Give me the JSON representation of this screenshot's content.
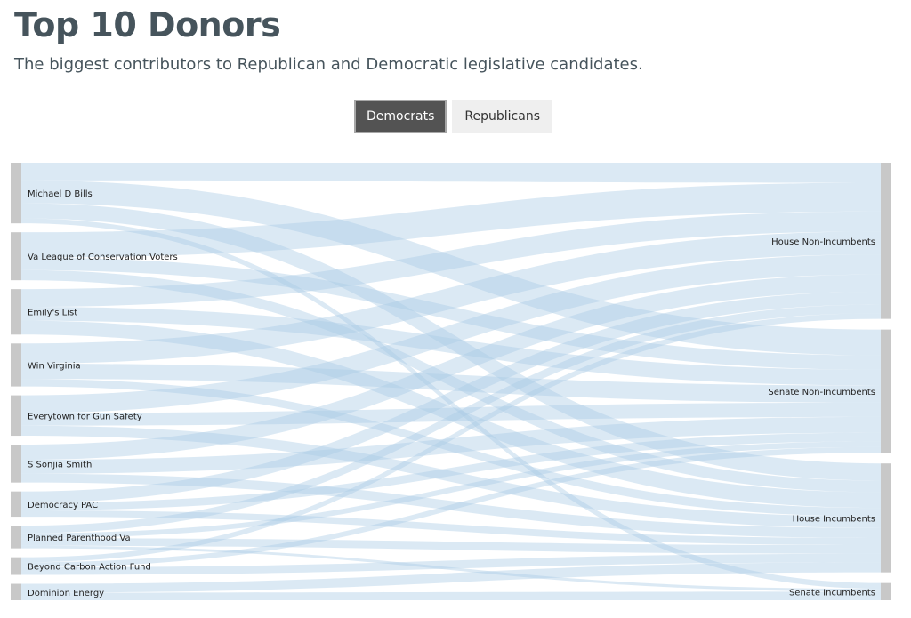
{
  "title": "Top 10 Donors",
  "subtitle": "The biggest contributors to Republican and Democratic legislative candidates.",
  "toggle": {
    "options": [
      "Democrats",
      "Republicans"
    ],
    "selected": "Democrats"
  },
  "colors": {
    "link": "#a9cbe5",
    "node": "#c8c8c8",
    "active_button": "#535353",
    "inactive_button": "#efefef",
    "title": "#46545c"
  },
  "chart_data": {
    "type": "sankey",
    "sources": [
      "Michael D Bills",
      "Va League of Conservation Voters",
      "Emily's List",
      "Win Virginia",
      "Everytown for Gun Safety",
      "S Sonjia Smith",
      "Democracy PAC",
      "Planned Parenthood Va",
      "Beyond Carbon Action Fund",
      "Dominion Energy"
    ],
    "targets": [
      "House Non-Incumbents",
      "Senate Non-Incumbents",
      "House Incumbents",
      "Senate Incumbents"
    ],
    "links": [
      {
        "source": "Michael D Bills",
        "target": "House Non-Incumbents",
        "value": 14
      },
      {
        "source": "Michael D Bills",
        "target": "Senate Non-Incumbents",
        "value": 18
      },
      {
        "source": "Michael D Bills",
        "target": "House Incumbents",
        "value": 12
      },
      {
        "source": "Michael D Bills",
        "target": "Senate Incumbents",
        "value": 4
      },
      {
        "source": "Va League of Conservation Voters",
        "target": "House Non-Incumbents",
        "value": 20
      },
      {
        "source": "Va League of Conservation Voters",
        "target": "Senate Non-Incumbents",
        "value": 10
      },
      {
        "source": "Va League of Conservation Voters",
        "target": "House Incumbents",
        "value": 8
      },
      {
        "source": "Emily's List",
        "target": "House Non-Incumbents",
        "value": 14
      },
      {
        "source": "Emily's List",
        "target": "Senate Non-Incumbents",
        "value": 11
      },
      {
        "source": "Emily's List",
        "target": "House Incumbents",
        "value": 11
      },
      {
        "source": "Win Virginia",
        "target": "House Non-Incumbents",
        "value": 16
      },
      {
        "source": "Win Virginia",
        "target": "Senate Non-Incumbents",
        "value": 12
      },
      {
        "source": "Win Virginia",
        "target": "House Incumbents",
        "value": 6
      },
      {
        "source": "Everytown for Gun Safety",
        "target": "House Non-Incumbents",
        "value": 14
      },
      {
        "source": "Everytown for Gun Safety",
        "target": "Senate Non-Incumbents",
        "value": 10
      },
      {
        "source": "Everytown for Gun Safety",
        "target": "House Incumbents",
        "value": 8
      },
      {
        "source": "S Sonjia Smith",
        "target": "House Non-Incumbents",
        "value": 12
      },
      {
        "source": "S Sonjia Smith",
        "target": "Senate Non-Incumbents",
        "value": 11
      },
      {
        "source": "S Sonjia Smith",
        "target": "House Incumbents",
        "value": 7
      },
      {
        "source": "Democracy PAC",
        "target": "House Non-Incumbents",
        "value": 9
      },
      {
        "source": "Democracy PAC",
        "target": "Senate Non-Incumbents",
        "value": 6
      },
      {
        "source": "Democracy PAC",
        "target": "House Incumbents",
        "value": 5
      },
      {
        "source": "Planned Parenthood Va",
        "target": "House Non-Incumbents",
        "value": 6
      },
      {
        "source": "Planned Parenthood Va",
        "target": "Senate Non-Incumbents",
        "value": 4
      },
      {
        "source": "Planned Parenthood Va",
        "target": "House Incumbents",
        "value": 6
      },
      {
        "source": "Planned Parenthood Va",
        "target": "Senate Incumbents",
        "value": 2
      },
      {
        "source": "Beyond Carbon Action Fund",
        "target": "House Non-Incumbents",
        "value": 4
      },
      {
        "source": "Beyond Carbon Action Fund",
        "target": "Senate Non-Incumbents",
        "value": 4
      },
      {
        "source": "Beyond Carbon Action Fund",
        "target": "House Incumbents",
        "value": 6
      },
      {
        "source": "Dominion Energy",
        "target": "House Incumbents",
        "value": 7
      },
      {
        "source": "Dominion Energy",
        "target": "Senate Incumbents",
        "value": 6
      }
    ]
  }
}
